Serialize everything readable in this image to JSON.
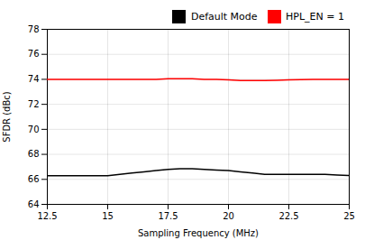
{
  "chart_data": {
    "type": "line",
    "xlabel": "Sampling Frequency (MHz)",
    "ylabel": "SFDR (dBc)",
    "x": [
      12.5,
      13.0,
      13.5,
      14.0,
      14.5,
      15.0,
      15.5,
      16.0,
      16.5,
      17.0,
      17.5,
      18.0,
      18.5,
      19.0,
      19.5,
      20.0,
      20.5,
      21.0,
      21.5,
      22.0,
      22.5,
      23.0,
      23.5,
      24.0,
      24.5,
      25.0
    ],
    "series": [
      {
        "name": "Default Mode",
        "color": "black",
        "values": [
          66.3,
          66.3,
          66.3,
          66.3,
          66.3,
          66.3,
          66.4,
          66.5,
          66.6,
          66.7,
          66.8,
          66.85,
          66.85,
          66.8,
          66.75,
          66.7,
          66.6,
          66.5,
          66.4,
          66.4,
          66.4,
          66.4,
          66.4,
          66.4,
          66.35,
          66.3
        ]
      },
      {
        "name": "HPL_EN = 1",
        "color": "red",
        "values": [
          74.0,
          74.0,
          74.0,
          74.0,
          74.0,
          74.0,
          74.0,
          74.0,
          74.0,
          74.0,
          74.05,
          74.05,
          74.05,
          74.0,
          74.0,
          73.95,
          73.9,
          73.9,
          73.9,
          73.92,
          73.95,
          73.97,
          74.0,
          74.0,
          74.0,
          74.0
        ]
      }
    ],
    "xlim": [
      12.5,
      25
    ],
    "ylim": [
      64,
      78
    ],
    "xticks": [
      12.5,
      15,
      17.5,
      20,
      22.5,
      25
    ],
    "yticks": [
      64,
      66,
      68,
      70,
      72,
      74,
      76,
      78
    ],
    "grid": true,
    "legend": "upper right"
  }
}
